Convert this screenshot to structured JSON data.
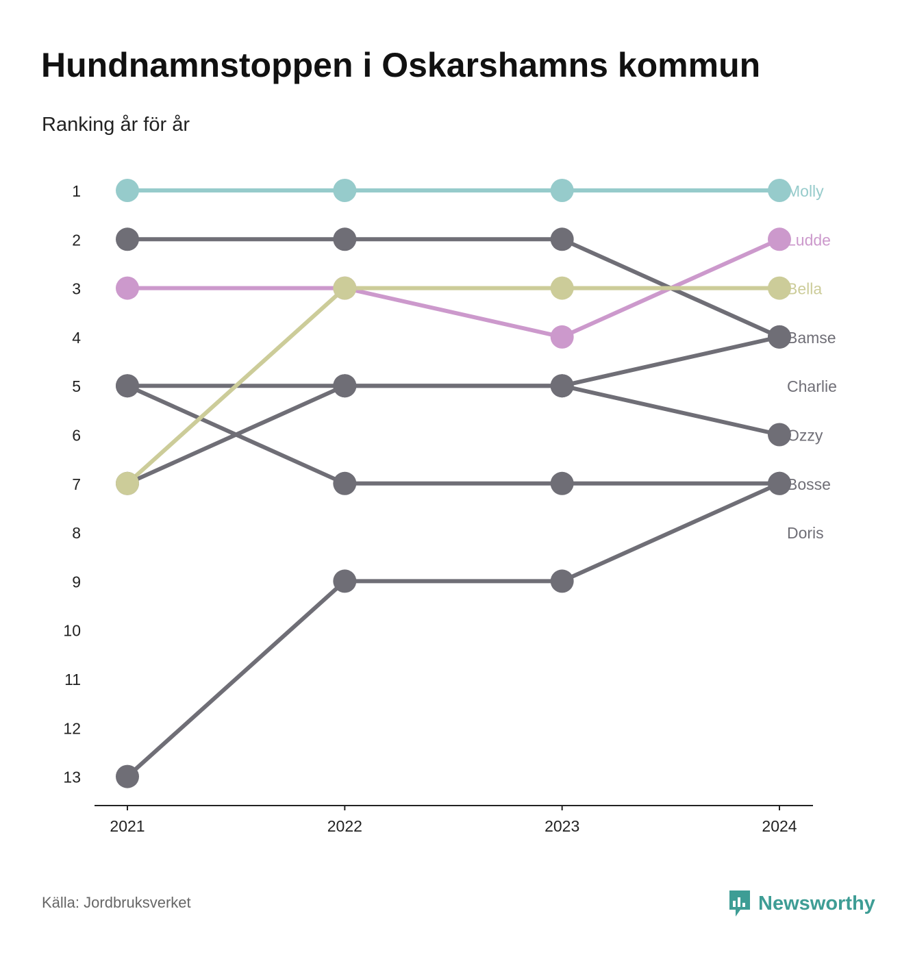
{
  "title": "Hundnamnstoppen i Oskarshamns kommun",
  "subtitle": "Ranking år för år",
  "source": "Källa: Jordbruksverket",
  "brand": {
    "name": "Newsworthy",
    "icon": "bar-chart-speech-bubble-icon",
    "color": "#3e9d95"
  },
  "chart_data": {
    "type": "line",
    "x": [
      "2021",
      "2022",
      "2023",
      "2024"
    ],
    "y_ticks": [
      "1",
      "2",
      "3",
      "4",
      "5",
      "6",
      "7",
      "8",
      "9",
      "10",
      "11",
      "12",
      "13"
    ],
    "ylim": [
      1,
      13
    ],
    "y_inverted": true,
    "grid": false,
    "legend": "labels at right end of lines",
    "series": [
      {
        "name": "Molly",
        "values": [
          1,
          1,
          1,
          1
        ],
        "color": "#96cbcb"
      },
      {
        "name": "Ludde",
        "values": [
          3,
          3,
          4,
          2
        ],
        "color": "#cc99cc"
      },
      {
        "name": "Bella",
        "values": [
          7,
          3,
          3,
          3
        ],
        "color": "#cccc99"
      },
      {
        "name": "Bamse",
        "values": [
          2,
          2,
          2,
          4
        ],
        "color": "#6f6e76"
      },
      {
        "name": "Charlie",
        "values": [
          null,
          null,
          null,
          null
        ],
        "color": "#6f6e76"
      },
      {
        "name": "Ozzy",
        "values": [
          5,
          5,
          5,
          6
        ],
        "color": "#6f6e76"
      },
      {
        "name": "Bosse",
        "values": [
          5,
          7,
          7,
          7
        ],
        "color": "#6f6e76"
      },
      {
        "name": "Doris",
        "values": [
          null,
          null,
          null,
          null
        ],
        "color": "#6f6e76"
      },
      {
        "name": "",
        "values": [
          7,
          5,
          5,
          4
        ],
        "color": "#6f6e76"
      },
      {
        "name": "",
        "values": [
          13,
          9,
          9,
          7
        ],
        "color": "#6f6e76"
      }
    ]
  }
}
